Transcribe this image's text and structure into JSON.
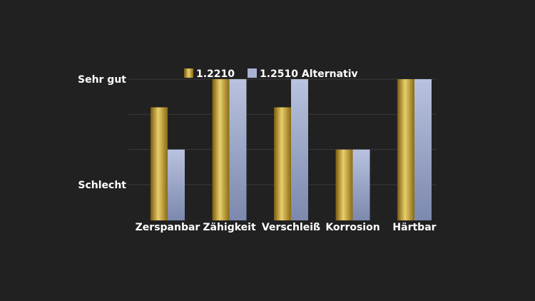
{
  "chart_data": {
    "type": "bar",
    "categories": [
      "Zerspanbar",
      "Zähigkeit",
      "Verschleiß",
      "Korrosion",
      "Härtbar"
    ],
    "series": [
      {
        "name": "1.2210",
        "values": [
          2.2,
          3.0,
          2.2,
          1.0,
          3.0
        ],
        "color": "#c9a227"
      },
      {
        "name": "1.2510  Alternativ",
        "values": [
          1.0,
          3.0,
          3.0,
          1.0,
          3.0
        ],
        "color": "#a9b4d4"
      }
    ],
    "ylim": [
      -1,
      3.2
    ],
    "y_ticks": [
      {
        "value": 0,
        "label": "Schlecht"
      },
      {
        "value": 3,
        "label": "Sehr gut"
      }
    ],
    "grid_values": [
      0,
      1,
      2,
      3
    ],
    "legend_position": "top-center",
    "grid": true
  }
}
